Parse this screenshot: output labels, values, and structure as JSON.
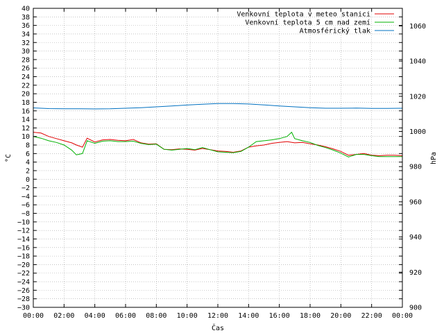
{
  "chart_data": {
    "type": "line",
    "title": "",
    "xlabel": "Čas",
    "ylabel": "°C",
    "y2label": "hPa",
    "x_ticks": [
      "00:00",
      "02:00",
      "04:00",
      "06:00",
      "08:00",
      "10:00",
      "12:00",
      "14:00",
      "16:00",
      "18:00",
      "20:00",
      "22:00",
      "00:00"
    ],
    "xlim": [
      0,
      24
    ],
    "ylim": [
      -30,
      40
    ],
    "y_step": 2,
    "y2lim": [
      900,
      1070
    ],
    "y2_ticks": [
      900,
      920,
      940,
      960,
      980,
      1000,
      1020,
      1040,
      1060
    ],
    "grid": true,
    "legend_position": "top-right",
    "series": [
      {
        "name": "Venkovní teplota v meteo stanici",
        "color": "#e00000",
        "axis": "y",
        "x": [
          0,
          0.5,
          1,
          1.5,
          2,
          2.5,
          2.8,
          3.2,
          3.5,
          4,
          4.5,
          5,
          5.5,
          6,
          6.5,
          7,
          7.5,
          8,
          8.5,
          9,
          9.5,
          10,
          10.5,
          11,
          11.5,
          12,
          12.5,
          13,
          13.5,
          14,
          14.5,
          15,
          15.5,
          16,
          16.5,
          17,
          17.5,
          18,
          18.5,
          19,
          19.5,
          20,
          20.5,
          21,
          21.5,
          22,
          22.5,
          23,
          23.5,
          24
        ],
        "y": [
          11,
          10.8,
          10,
          9.5,
          9,
          8.5,
          8,
          7.5,
          9.6,
          8.7,
          9.2,
          9.3,
          9.1,
          9,
          9.3,
          8.5,
          8.2,
          8.3,
          7,
          6.9,
          7.1,
          7,
          6.8,
          7.2,
          6.9,
          6.6,
          6.5,
          6.3,
          6.6,
          7.5,
          7.8,
          8,
          8.4,
          8.6,
          8.8,
          8.5,
          8.6,
          8.3,
          8,
          7.6,
          7.1,
          6.5,
          5.6,
          5.8,
          6,
          5.6,
          5.5,
          5.6,
          5.6,
          5.5
        ]
      },
      {
        "name": "Venkovní teplota 5 cm nad zemí",
        "color": "#00b000",
        "axis": "y",
        "x": [
          0,
          0.5,
          1,
          1.5,
          2,
          2.5,
          2.8,
          3.2,
          3.5,
          4,
          4.5,
          5,
          5.5,
          6,
          6.5,
          7,
          7.5,
          8,
          8.5,
          9,
          9.5,
          10,
          10.5,
          11,
          11.5,
          12,
          12.5,
          13,
          13.5,
          14,
          14.5,
          15,
          15.5,
          16,
          16.5,
          16.8,
          17,
          17.5,
          18,
          18.5,
          19,
          19.5,
          20,
          20.5,
          21,
          21.5,
          22,
          22.5,
          23,
          23.5,
          24
        ],
        "y": [
          10,
          9.6,
          9,
          8.6,
          8,
          6.8,
          5.7,
          6,
          9,
          8.4,
          8.9,
          9,
          8.8,
          8.8,
          8.9,
          8.4,
          8.1,
          8.2,
          7,
          6.8,
          7,
          7.2,
          6.9,
          7.4,
          6.9,
          6.4,
          6.3,
          6.2,
          6.5,
          7.5,
          8.8,
          9,
          9.2,
          9.5,
          10,
          11,
          9.5,
          9,
          8.6,
          7.9,
          7.4,
          6.8,
          6.1,
          5.2,
          5.8,
          5.8,
          5.5,
          5.3,
          5.3,
          5.3,
          5.3
        ]
      },
      {
        "name": "Atmosférický tlak",
        "color": "#0070c0",
        "axis": "y2",
        "x": [
          0,
          1,
          2,
          3,
          4,
          5,
          6,
          7,
          8,
          9,
          10,
          11,
          12,
          13,
          14,
          15,
          16,
          17,
          18,
          19,
          20,
          21,
          22,
          23,
          24
        ],
        "y": [
          1013.4,
          1013,
          1012.9,
          1012.9,
          1012.8,
          1012.9,
          1013.2,
          1013.5,
          1014,
          1014.5,
          1015,
          1015.5,
          1015.9,
          1015.9,
          1015.6,
          1015.1,
          1014.5,
          1014,
          1013.5,
          1013.2,
          1013.2,
          1013.3,
          1013.1,
          1013.1,
          1013.2
        ]
      }
    ]
  }
}
